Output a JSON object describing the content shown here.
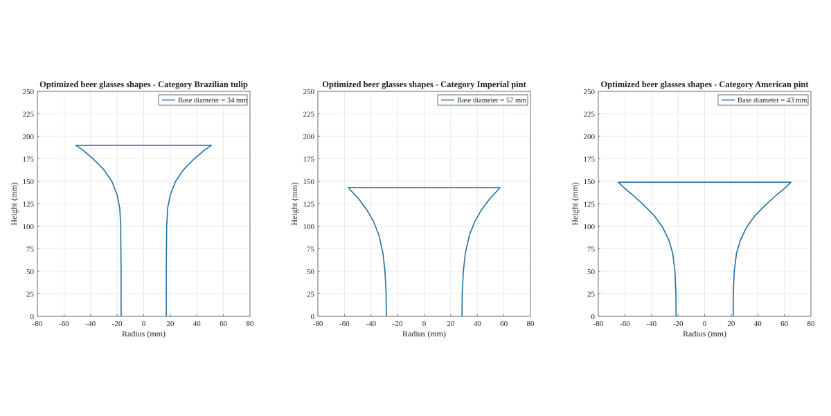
{
  "chart_data": [
    {
      "type": "line",
      "title": "Optimized beer glasses shapes - Category Brazilian tulip",
      "xlabel": "Radius (mm)",
      "ylabel": "Height (mm)",
      "xlim": [
        -80,
        80
      ],
      "ylim": [
        0,
        250
      ],
      "xticks": [
        -80,
        -60,
        -40,
        -20,
        0,
        20,
        40,
        60,
        80
      ],
      "yticks": [
        0,
        25,
        50,
        75,
        100,
        125,
        150,
        175,
        200,
        225,
        250
      ],
      "grid": true,
      "legend_position": "top-right",
      "series": [
        {
          "name": "Base diameter =  34 mm",
          "color": "#1f6f9f",
          "points": [
            [
              -17,
              0
            ],
            [
              -17,
              50
            ],
            [
              -17.3,
              100
            ],
            [
              -18,
              120
            ],
            [
              -20,
              135
            ],
            [
              -24,
              150
            ],
            [
              -30,
              163
            ],
            [
              -38,
              175
            ],
            [
              -46,
              185
            ],
            [
              -51,
              190
            ],
            [
              51,
              190
            ],
            [
              46,
              185
            ],
            [
              38,
              175
            ],
            [
              30,
              163
            ],
            [
              24,
              150
            ],
            [
              20,
              135
            ],
            [
              18,
              120
            ],
            [
              17.3,
              100
            ],
            [
              17,
              50
            ],
            [
              17,
              0
            ]
          ]
        }
      ]
    },
    {
      "type": "line",
      "title": "Optimized beer glasses shapes - Category Imperial pint",
      "xlabel": "Radius (mm)",
      "ylabel": "Height (mm)",
      "xlim": [
        -80,
        80
      ],
      "ylim": [
        0,
        250
      ],
      "xticks": [
        -80,
        -60,
        -40,
        -20,
        0,
        20,
        40,
        60,
        80
      ],
      "yticks": [
        0,
        25,
        50,
        75,
        100,
        125,
        150,
        175,
        200,
        225,
        250
      ],
      "grid": true,
      "legend_position": "top-right",
      "series": [
        {
          "name": "Base diameter =  57 mm",
          "color": "#1f6f9f",
          "points": [
            [
              -28.5,
              0
            ],
            [
              -28.6,
              25
            ],
            [
              -29.5,
              50
            ],
            [
              -31,
              70
            ],
            [
              -34,
              90
            ],
            [
              -38,
              105
            ],
            [
              -43,
              118
            ],
            [
              -49,
              130
            ],
            [
              -54,
              138
            ],
            [
              -57,
              143
            ],
            [
              57,
              143
            ],
            [
              54,
              138
            ],
            [
              49,
              130
            ],
            [
              43,
              118
            ],
            [
              38,
              105
            ],
            [
              34,
              90
            ],
            [
              31,
              70
            ],
            [
              29.5,
              50
            ],
            [
              28.6,
              25
            ],
            [
              28.5,
              0
            ]
          ]
        }
      ]
    },
    {
      "type": "line",
      "title": "Optimized beer glasses shapes - Category American pint",
      "xlabel": "Radius (mm)",
      "ylabel": "Height (mm)",
      "xlim": [
        -80,
        80
      ],
      "ylim": [
        0,
        250
      ],
      "xticks": [
        -80,
        -60,
        -40,
        -20,
        0,
        20,
        40,
        60,
        80
      ],
      "yticks": [
        0,
        25,
        50,
        75,
        100,
        125,
        150,
        175,
        200,
        225,
        250
      ],
      "grid": true,
      "legend_position": "top-right",
      "series": [
        {
          "name": "Base diameter =  43 mm",
          "color": "#1f6f9f",
          "points": [
            [
              -21.5,
              0
            ],
            [
              -21.6,
              25
            ],
            [
              -22.3,
              50
            ],
            [
              -24,
              70
            ],
            [
              -27,
              85
            ],
            [
              -32,
              100
            ],
            [
              -38,
              112
            ],
            [
              -46,
              124
            ],
            [
              -55,
              136
            ],
            [
              -60,
              142
            ],
            [
              -65,
              149
            ],
            [
              65,
              149
            ],
            [
              60,
              142
            ],
            [
              55,
              136
            ],
            [
              46,
              124
            ],
            [
              38,
              112
            ],
            [
              32,
              100
            ],
            [
              27,
              85
            ],
            [
              24,
              70
            ],
            [
              22.3,
              50
            ],
            [
              21.6,
              25
            ],
            [
              21.5,
              0
            ]
          ]
        }
      ]
    }
  ]
}
